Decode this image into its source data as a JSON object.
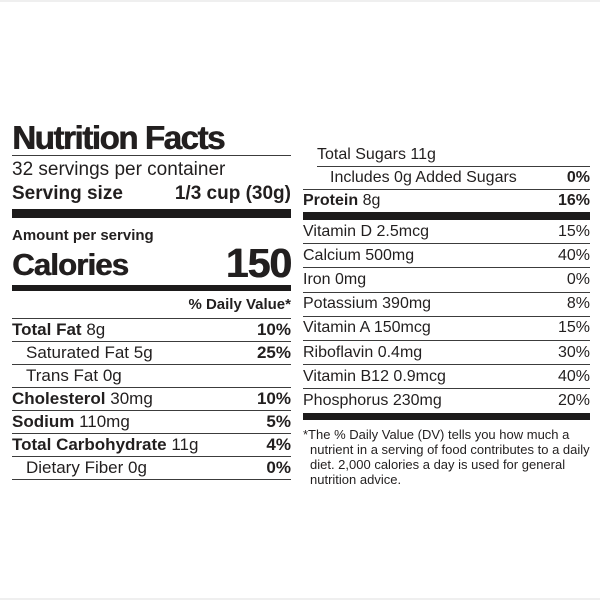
{
  "label": {
    "title": "Nutrition Facts",
    "servings_per_container": "32 servings per container",
    "serving_size_label": "Serving size",
    "serving_size_value": "1/3 cup (30g)",
    "amount_per_serving": "Amount per serving",
    "calories_label": "Calories",
    "calories_value": "150",
    "daily_value_header": "% Daily Value*",
    "left_rows": [
      {
        "name": "Total Fat",
        "amount": "8g",
        "pct": "10%"
      },
      {
        "name": "Saturated Fat",
        "amount": "5g",
        "pct": "25%"
      },
      {
        "name": "Trans Fat",
        "amount": "0g",
        "pct": ""
      },
      {
        "name": "Cholesterol",
        "amount": "30mg",
        "pct": "10%"
      },
      {
        "name": "Sodium",
        "amount": "110mg",
        "pct": "5%"
      },
      {
        "name": "Total Carbohydrate",
        "amount": "11g",
        "pct": "4%"
      },
      {
        "name": "Dietary Fiber",
        "amount": "0g",
        "pct": "0%"
      }
    ],
    "right_top_rows": [
      {
        "name": "Total Sugars",
        "amount": "11g",
        "pct": ""
      },
      {
        "name": "Includes 0g Added Sugars",
        "amount": "",
        "pct": "0%"
      },
      {
        "name": "Protein",
        "amount": "8g",
        "pct": "16%"
      }
    ],
    "vitamin_rows": [
      {
        "name": "Vitamin D 2.5mcg",
        "pct": "15%"
      },
      {
        "name": "Calcium 500mg",
        "pct": "40%"
      },
      {
        "name": "Iron 0mg",
        "pct": "0%"
      },
      {
        "name": "Potassium 390mg",
        "pct": "8%"
      },
      {
        "name": "Vitamin A 150mcg",
        "pct": "15%"
      },
      {
        "name": "Riboflavin 0.4mg",
        "pct": "30%"
      },
      {
        "name": "Vitamin B12 0.9mcg",
        "pct": "40%"
      },
      {
        "name": "Phosphorus 230mg",
        "pct": "20%"
      }
    ],
    "footnote": "*The % Daily Value (DV) tells you how much a nutrient in a serving of food contributes to a daily diet. 2,000 calories a day is used for general nutrition advice."
  },
  "colors": {
    "background": "#ffffff",
    "text": "#221f1f",
    "bar": "#1d1b1b",
    "hairline": "#3c3c3c"
  }
}
